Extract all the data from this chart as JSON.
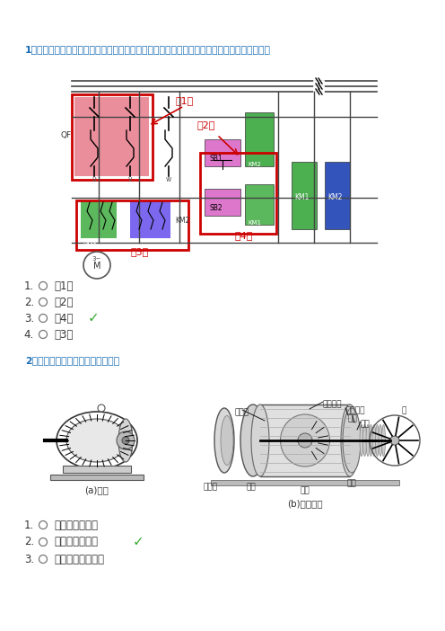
{
  "bg_color": "#ffffff",
  "title_color": "#1a6eb5",
  "text_color": "#000000",
  "check_color": "#3aaa35",
  "red_color": "#cc0000",
  "q1_text": "1、图示的控制线路图中，用红色方框标出的哪个部分代表了防止三相绕短路的互锁环节？（）",
  "q2_text": "2、下图所示的电动机是一台：（）",
  "q1_options": [
    "（1）",
    "（2）",
    "（4）",
    "（3）"
  ],
  "q1_check_idx": 2,
  "q2_options": [
    "他励直流电动机",
    "三相异步电动机",
    "永磁式直流电动机"
  ],
  "q2_check_idx": 1
}
